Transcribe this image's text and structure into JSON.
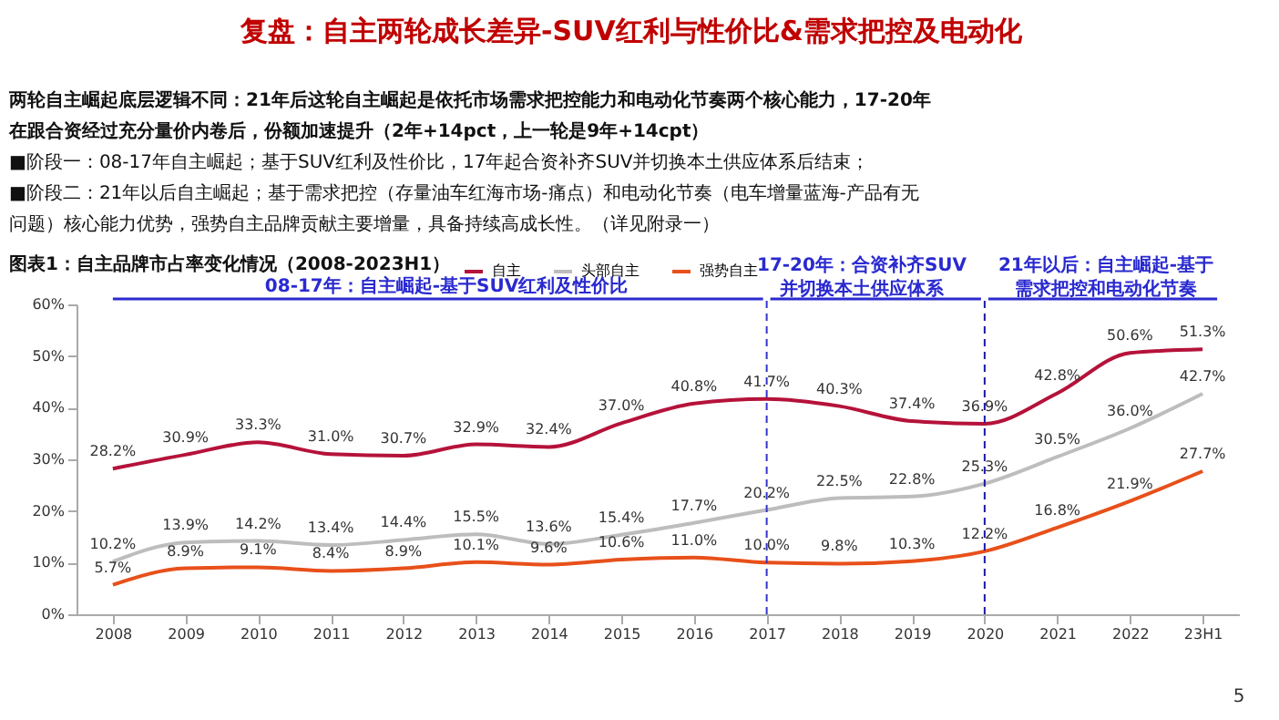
{
  "chart_data": {
    "type": "line",
    "title": "复盘：自主两轮成长差异-SUV红利与性价比&需求把控及电动化",
    "subtitle": "图表1：自主品牌市占率变化情况（2008-2023H1）",
    "annotations": [
      "两轮自主崛起底层逻辑不同：21年后这轮自主崛起是依托市场需求把控能力和电动化节奏两个核心能力，17-20年",
      "在跟合资经过充分量价内卷后，份额加速提升（2年+14pct，上一轮是9年+14cpt）",
      "■阶段一：08-17年自主崛起；基于SUV红利及性价比，17年起合资补齐SUV并切换本土供应体系后结束；",
      "■阶段二：21年以后自主崛起；基于需求把控（存量油车红海市场-痛点）和电动化节奏（电车增量蓝海-产品有无",
      "问题）核心能力优势，强势自主品牌贡献主要增量，具备持续高成长性。（详见附录一）",
      "08-17年：自主崛起-基于SUV红利及性价比",
      "17-20年：合资补齐SUV并切换本土供应体系",
      "21年以后：自主崛起-基于需求把控和电动化节奏",
      "5"
    ],
    "categories": [
      "2008",
      "2009",
      "2010",
      "2011",
      "2012",
      "2013",
      "2014",
      "2015",
      "2016",
      "2017",
      "2018",
      "2019",
      "2020",
      "2021",
      "2022",
      "23H1"
    ],
    "series": [
      {
        "name": "自主",
        "color": "#b5123a",
        "values": [
          28.2,
          30.9,
          33.3,
          31.0,
          30.7,
          32.9,
          32.4,
          37.0,
          40.8,
          41.7,
          40.3,
          37.4,
          36.9,
          42.8,
          50.6,
          51.3
        ],
        "value_labels": [
          "28.2%",
          "30.9%",
          "33.3%",
          "31.0%",
          "30.7%",
          "32.9%",
          "32.4%",
          "37.0%",
          "40.8%",
          "41.7%",
          "40.3%",
          "37.4%",
          "36.9%",
          "42.8%",
          "50.6%",
          "51.3%"
        ]
      },
      {
        "name": "头部自主",
        "color": "#bdbdbd",
        "values": [
          10.2,
          13.9,
          14.2,
          13.4,
          14.4,
          15.5,
          13.6,
          15.4,
          17.7,
          20.2,
          22.5,
          22.8,
          25.3,
          30.5,
          36.0,
          42.7
        ],
        "value_labels": [
          "10.2%",
          "13.9%",
          "14.2%",
          "13.4%",
          "14.4%",
          "15.5%",
          "13.6%",
          "15.4%",
          "17.7%",
          "20.2%",
          "22.5%",
          "22.8%",
          "25.3%",
          "30.5%",
          "36.0%",
          "42.7%"
        ]
      },
      {
        "name": "强势自主",
        "color": "#e8501a",
        "values": [
          5.7,
          8.9,
          9.1,
          8.4,
          8.9,
          10.1,
          9.6,
          10.6,
          11.0,
          10.0,
          9.8,
          10.3,
          12.2,
          16.8,
          21.9,
          27.7
        ],
        "value_labels": [
          "5.7%",
          "8.9%",
          "9.1%",
          "8.4%",
          "8.9%",
          "10.1%",
          "9.6%",
          "10.6%",
          "11.0%",
          "10.0%",
          "9.8%",
          "10.3%",
          "12.2%",
          "16.8%",
          "21.9%",
          "27.7%"
        ]
      }
    ],
    "ylim": [
      0,
      60
    ],
    "yticks": [
      {
        "value": 0,
        "label": "0%"
      },
      {
        "value": 10,
        "label": "10%"
      },
      {
        "value": 20,
        "label": "20%"
      },
      {
        "value": 30,
        "label": "30%"
      },
      {
        "value": 40,
        "label": "40%"
      },
      {
        "value": 50,
        "label": "50%"
      },
      {
        "value": 60,
        "label": "60%"
      }
    ],
    "ref_lines": [
      {
        "axis": "x",
        "value": "2017",
        "color": "#3333cc",
        "line_style": "dashed"
      },
      {
        "axis": "x",
        "value": "2020",
        "color": "#1a1aa6",
        "line_style": "dashed"
      }
    ],
    "legend": "top",
    "grid": false,
    "marker": "none",
    "line_style": "solid"
  }
}
